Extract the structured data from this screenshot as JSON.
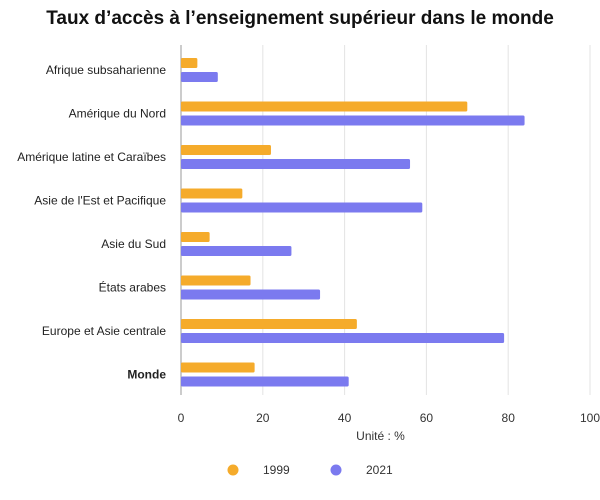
{
  "chart_data": {
    "type": "bar",
    "orientation": "horizontal",
    "title": "Taux d’accès à l’enseignement supérieur dans le monde",
    "xlabel": "Unité : %",
    "ylabel": "",
    "xlim": [
      0,
      100
    ],
    "xticks": [
      0,
      20,
      40,
      60,
      80,
      100
    ],
    "grid": true,
    "legend_position": "bottom",
    "categories": [
      "Afrique subsaharienne",
      "Amérique du Nord",
      "Amérique latine et Caraïbes",
      "Asie de l'Est et Pacifique",
      "Asie du Sud",
      "États arabes",
      "Europe et Asie centrale",
      "Monde"
    ],
    "bold_categories": [
      "Monde"
    ],
    "series": [
      {
        "name": "1999",
        "color": "#F5AB2B",
        "values": [
          4,
          70,
          22,
          15,
          7,
          17,
          43,
          18
        ]
      },
      {
        "name": "2021",
        "color": "#7B7AEF",
        "values": [
          9,
          84,
          56,
          59,
          27,
          34,
          79,
          41
        ]
      }
    ]
  }
}
